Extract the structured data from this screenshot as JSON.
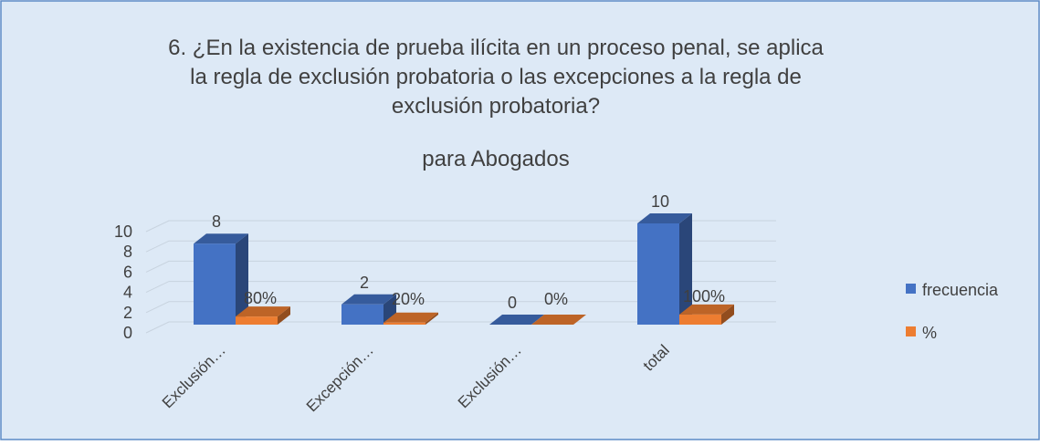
{
  "chart_data": {
    "type": "bar3d",
    "title": [
      "6.  ¿En la existencia de prueba ilícita en un proceso penal, se aplica",
      "la regla de exclusión probatoria o las excepciones a la regla de",
      "exclusión probatoria?"
    ],
    "subtitle": "para Abogados",
    "categories": [
      "Exclusión…",
      "Excepción…",
      "Exclusión…",
      "total"
    ],
    "series": [
      {
        "name": "frecuencia",
        "color": "#4472c4",
        "values": [
          8,
          2,
          0,
          10
        ],
        "value_labels": [
          "8",
          "2",
          "0",
          "10"
        ]
      },
      {
        "name": "%",
        "color": "#ed7d31",
        "values": [
          0.8,
          0.2,
          0,
          1
        ],
        "value_labels": [
          "80%",
          "20%",
          "0%",
          "100%"
        ]
      }
    ],
    "ylim": [
      0,
      10
    ],
    "yticks": [
      0,
      2,
      4,
      6,
      8,
      10
    ],
    "grid": true,
    "legend": "right"
  }
}
